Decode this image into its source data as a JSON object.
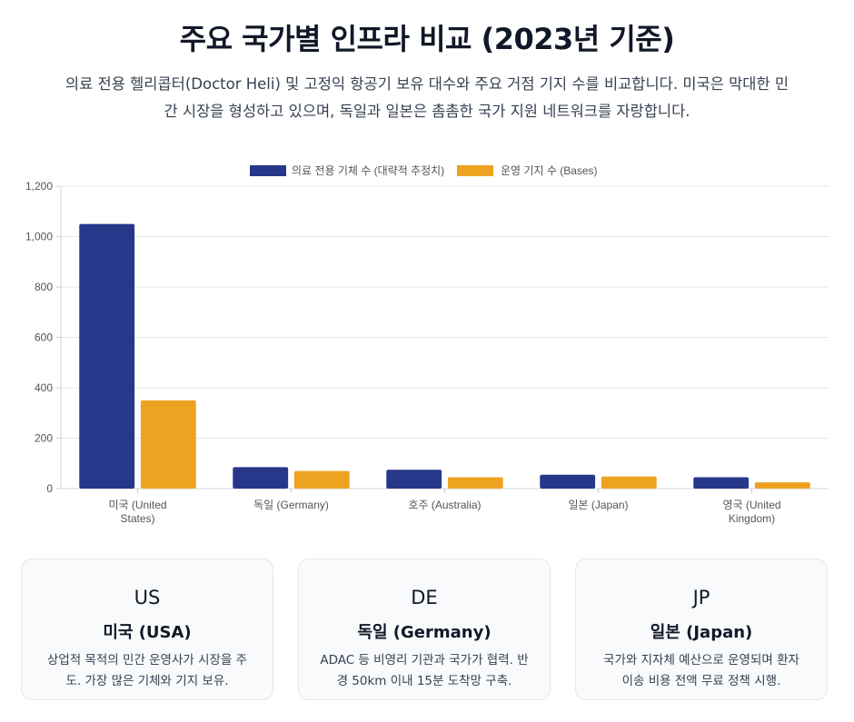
{
  "header": {
    "title": "주요 국가별 인프라 비교 (2023년 기준)",
    "subtitle": "의료 전용 헬리콥터(Doctor Heli) 및 고정익 항공기 보유 대수와 주요 거점 기지 수를 비교합니다. 미국은 막대한 민간 시장을 형성하고 있으며, 독일과 일본은 촘촘한 국가 지원 네트워크를 자랑합니다."
  },
  "colors": {
    "series1": "#27378a",
    "series2": "#eea221",
    "grid": "#e5e7eb",
    "axis": "#555555"
  },
  "chart_data": {
    "type": "bar",
    "categories": [
      [
        "미국 (United",
        "States)"
      ],
      [
        "독일 (Germany)"
      ],
      [
        "호주 (Australia)"
      ],
      [
        "일본 (Japan)"
      ],
      [
        "영국 (United",
        "Kingdom)"
      ]
    ],
    "series": [
      {
        "name": "의료 전용 기체 수 (대략적 추정치)",
        "values": [
          1050,
          85,
          75,
          55,
          45
        ]
      },
      {
        "name": "운영 기지 수 (Bases)",
        "values": [
          350,
          70,
          45,
          48,
          25
        ]
      }
    ],
    "ylim": [
      0,
      1200
    ],
    "yticks": [
      0,
      200,
      400,
      600,
      800,
      1000,
      1200
    ],
    "ytick_labels": [
      "0",
      "200",
      "400",
      "600",
      "800",
      "1,000",
      "1,200"
    ],
    "legend_position": "top"
  },
  "cards": [
    {
      "code": "US",
      "name": "미국 (USA)",
      "desc": "상업적 목적의 민간 운영사가 시장을 주도. 가장 많은 기체와 기지 보유."
    },
    {
      "code": "DE",
      "name": "독일 (Germany)",
      "desc": "ADAC 등 비영리 기관과 국가가 협력. 반경 50km 이내 15분 도착망 구축."
    },
    {
      "code": "JP",
      "name": "일본 (Japan)",
      "desc": "국가와 지자체 예산으로 운영되며 환자 이송 비용 전액 무료 정책 시행."
    }
  ]
}
